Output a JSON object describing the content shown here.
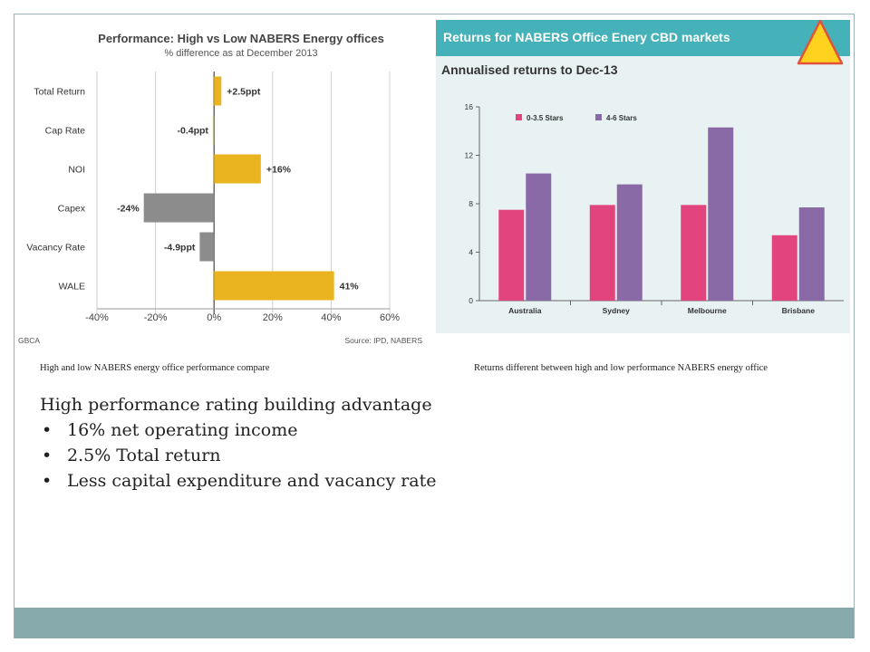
{
  "captions": {
    "left": "High and low NABERS energy office performance compare",
    "right": "Returns different between high and low performance NABERS energy office"
  },
  "body": {
    "heading": "High performance rating building advantage",
    "bullets": [
      "16% net operating income",
      "2.5% Total return",
      "Less capital expenditure and vacancy rate"
    ]
  },
  "icons": {
    "corner": "warning-triangle-icon"
  },
  "colors": {
    "amber": "#e9b420",
    "gray": "#8c8c8c",
    "pink": "#e2457e",
    "purple": "#8a6aa6",
    "teal": "#45b1b8",
    "footer": "#86a9ab"
  },
  "chart_data": [
    {
      "type": "bar",
      "orientation": "horizontal",
      "title": "Performance: High vs Low NABERS Energy offices",
      "subtitle": "% difference as at December 2013",
      "categories": [
        "Total Return",
        "Cap Rate",
        "NOI",
        "Capex",
        "Vacancy Rate",
        "WALE"
      ],
      "values": [
        2.5,
        -0.4,
        16,
        -24,
        -4.9,
        41
      ],
      "value_labels": [
        "+2.5ppt",
        "-0.4ppt",
        "+16%",
        "-24%",
        "-4.9ppt",
        "41%"
      ],
      "bar_colors": [
        "#e9b420",
        "#e9b420",
        "#e9b420",
        "#8c8c8c",
        "#8c8c8c",
        "#e9b420"
      ],
      "xlim": [
        -40,
        60
      ],
      "xticks": [
        -40,
        -20,
        0,
        20,
        40,
        60
      ],
      "xtick_labels": [
        "-40%",
        "-20%",
        "0%",
        "20%",
        "40%",
        "60%"
      ],
      "grid": true,
      "source_left": "GBCA",
      "source_right": "Source: IPD, NABERS"
    },
    {
      "type": "bar",
      "title": "Returns for NABERS Office Enery CBD markets",
      "subtitle": "Annualised returns to Dec-13",
      "categories": [
        "Australia",
        "Sydney",
        "Melbourne",
        "Brisbane"
      ],
      "series": [
        {
          "name": "0-3.5 Stars",
          "color": "#e2457e",
          "values": [
            7.5,
            7.9,
            7.9,
            5.4
          ]
        },
        {
          "name": "4-6 Stars",
          "color": "#8a6aa6",
          "values": [
            10.5,
            9.6,
            14.3,
            7.7
          ]
        }
      ],
      "ylim": [
        0,
        16
      ],
      "yticks": [
        0,
        4,
        8,
        12,
        16
      ],
      "legend": "top-left",
      "grid": false
    }
  ]
}
